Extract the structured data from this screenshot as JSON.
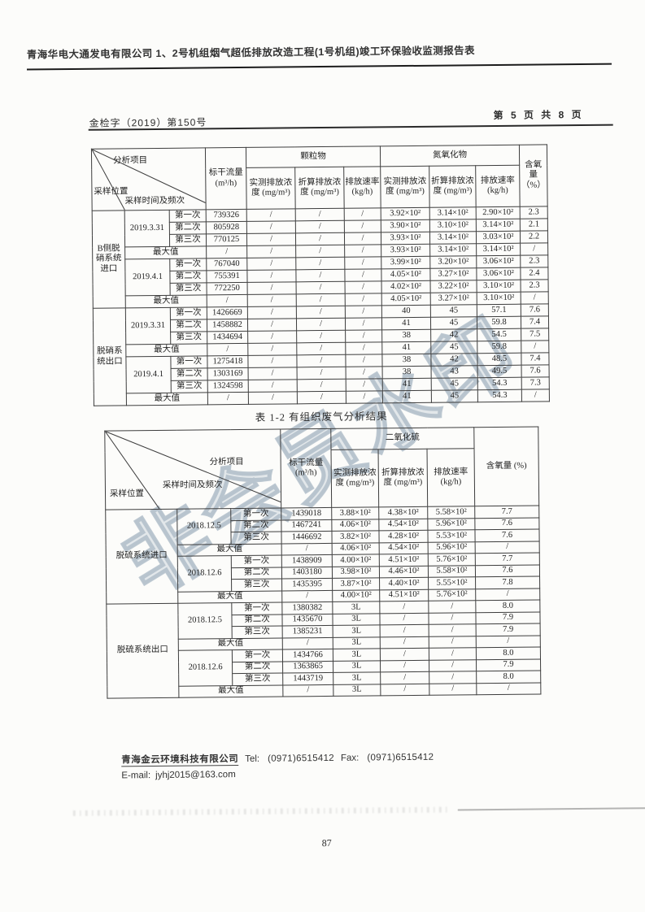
{
  "page": {
    "title": "青海华电大通发电有限公司 1、2号机组烟气超低排放改造工程(1号机组)竣工环保验收监测报告表",
    "doc_number": "金检字（2019）第150号",
    "page_indicator": "第 5 页 共 8 页",
    "page_number": "87",
    "watermark_text": "非会员水印",
    "colors": {
      "ink": "#242424",
      "table_border": "#3d3d3d",
      "watermark": "#bcc7d1"
    }
  },
  "table1": {
    "corner": {
      "item": "分析项目",
      "position": "采样位置",
      "time": "采样时间及频次"
    },
    "columns": {
      "flow": "标干流量 (m³/h)",
      "o2": "含氧量（%）"
    },
    "groups": [
      {
        "label": "颗粒物",
        "sub": [
          "实测排放浓度 (mg/m³)",
          "折算排放浓度 (mg/m³)",
          "排放速率 (kg/h)"
        ]
      },
      {
        "label": "氮氧化物",
        "sub": [
          "实测排放浓度 (mg/m³)",
          "折算排放浓度 (mg/m³)",
          "排放速率 (kg/h)"
        ]
      }
    ],
    "rows": [
      {
        "loc": "B侧脱硝系统进口",
        "locSpan": 8,
        "date": "2019.3.31",
        "dateSpan": 3,
        "seq": "第一次",
        "cells": [
          "739326",
          "/",
          "/",
          "/",
          "3.92×10²",
          "3.14×10²",
          "2.90×10²",
          "2.3"
        ]
      },
      {
        "seq": "第二次",
        "cells": [
          "805928",
          "/",
          "/",
          "/",
          "3.90×10²",
          "3.10×10²",
          "3.14×10²",
          "2.1"
        ]
      },
      {
        "seq": "第三次",
        "cells": [
          "770125",
          "/",
          "/",
          "/",
          "3.93×10²",
          "3.14×10²",
          "3.03×10²",
          "2.2"
        ]
      },
      {
        "max": "最大值",
        "cells": [
          "/",
          "/",
          "/",
          "/",
          "3.93×10²",
          "3.14×10²",
          "3.14×10²",
          "/"
        ]
      },
      {
        "date": "2019.4.1",
        "dateSpan": 3,
        "seq": "第一次",
        "cells": [
          "767040",
          "/",
          "/",
          "/",
          "3.99×10²",
          "3.20×10²",
          "3.06×10²",
          "2.3"
        ]
      },
      {
        "seq": "第二次",
        "cells": [
          "755391",
          "/",
          "/",
          "/",
          "4.05×10²",
          "3.27×10²",
          "3.06×10²",
          "2.4"
        ]
      },
      {
        "seq": "第三次",
        "cells": [
          "772250",
          "/",
          "/",
          "/",
          "4.02×10²",
          "3.22×10²",
          "3.10×10²",
          "2.3"
        ]
      },
      {
        "max": "最大值",
        "cells": [
          "/",
          "/",
          "/",
          "/",
          "4.05×10²",
          "3.27×10²",
          "3.10×10²",
          "/"
        ]
      },
      {
        "loc": "脱硝系统出口",
        "locSpan": 8,
        "date": "2019.3.31",
        "dateSpan": 3,
        "seq": "第一次",
        "cells": [
          "1426669",
          "/",
          "/",
          "/",
          "40",
          "45",
          "57.1",
          "7.6"
        ]
      },
      {
        "seq": "第二次",
        "cells": [
          "1458882",
          "/",
          "/",
          "/",
          "41",
          "45",
          "59.8",
          "7.4"
        ]
      },
      {
        "seq": "第三次",
        "cells": [
          "1434694",
          "/",
          "/",
          "/",
          "38",
          "42",
          "54.5",
          "7.5"
        ]
      },
      {
        "max": "最大值",
        "cells": [
          "/",
          "/",
          "/",
          "/",
          "41",
          "45",
          "59.8",
          "/"
        ]
      },
      {
        "date": "2019.4.1",
        "dateSpan": 3,
        "seq": "第一次",
        "cells": [
          "1275418",
          "/",
          "/",
          "/",
          "38",
          "42",
          "48.5",
          "7.4"
        ]
      },
      {
        "seq": "第二次",
        "cells": [
          "1303169",
          "/",
          "/",
          "/",
          "38",
          "43",
          "49.5",
          "7.6"
        ]
      },
      {
        "seq": "第三次",
        "cells": [
          "1324598",
          "/",
          "/",
          "/",
          "41",
          "45",
          "54.3",
          "7.3"
        ]
      },
      {
        "max": "最大值",
        "cells": [
          "/",
          "/",
          "/",
          "/",
          "41",
          "45",
          "54.3",
          "/"
        ]
      }
    ]
  },
  "caption2": "表 1-2  有组织废气分析结果",
  "table2": {
    "corner": {
      "item": "分析项目",
      "position": "采样位置",
      "time": "采样时间及频次"
    },
    "columns": {
      "flow": "标干流量 (m³/h)",
      "o2": "含氧量 (%)"
    },
    "group": {
      "label": "二氧化硫",
      "sub": [
        "实测排放浓度 (mg/m³)",
        "折算排放浓度 (mg/m³)",
        "排放速率 (kg/h)"
      ]
    },
    "rows": [
      {
        "loc": "脱硫系统进口",
        "locSpan": 8,
        "date": "2018.12.5",
        "dateSpan": 3,
        "seq": "第一次",
        "cells": [
          "1439018",
          "3.88×10²",
          "4.38×10²",
          "5.58×10²",
          "7.7"
        ]
      },
      {
        "seq": "第二次",
        "cells": [
          "1467241",
          "4.06×10²",
          "4.54×10²",
          "5.96×10²",
          "7.6"
        ]
      },
      {
        "seq": "第三次",
        "cells": [
          "1446692",
          "3.82×10²",
          "4.28×10²",
          "5.53×10²",
          "7.6"
        ]
      },
      {
        "max": "最大值",
        "cells": [
          "/",
          "4.06×10²",
          "4.54×10²",
          "5.96×10²",
          "/"
        ]
      },
      {
        "date": "2018.12.6",
        "dateSpan": 3,
        "seq": "第一次",
        "cells": [
          "1438909",
          "4.00×10²",
          "4.51×10²",
          "5.76×10²",
          "7.7"
        ]
      },
      {
        "seq": "第二次",
        "cells": [
          "1403180",
          "3.98×10²",
          "4.46×10²",
          "5.58×10²",
          "7.6"
        ]
      },
      {
        "seq": "第三次",
        "cells": [
          "1435395",
          "3.87×10²",
          "4.40×10²",
          "5.55×10²",
          "7.8"
        ]
      },
      {
        "max": "最大值",
        "cells": [
          "/",
          "4.00×10²",
          "4.51×10²",
          "5.76×10²",
          "/"
        ]
      },
      {
        "loc": "脱硫系统出口",
        "locSpan": 8,
        "date": "2018.12.5",
        "dateSpan": 3,
        "seq": "第一次",
        "cells": [
          "1380382",
          "3L",
          "/",
          "/",
          "8.0"
        ]
      },
      {
        "seq": "第二次",
        "cells": [
          "1435670",
          "3L",
          "/",
          "/",
          "7.9"
        ]
      },
      {
        "seq": "第三次",
        "cells": [
          "1385231",
          "3L",
          "/",
          "/",
          "7.9"
        ]
      },
      {
        "max": "最大值",
        "cells": [
          "/",
          "3L",
          "/",
          "/",
          "/"
        ]
      },
      {
        "date": "2018.12.6",
        "dateSpan": 3,
        "seq": "第一次",
        "cells": [
          "1434766",
          "3L",
          "/",
          "/",
          "8.0"
        ]
      },
      {
        "seq": "第二次",
        "cells": [
          "1363865",
          "3L",
          "/",
          "/",
          "7.9"
        ]
      },
      {
        "seq": "第三次",
        "cells": [
          "1443719",
          "3L",
          "/",
          "/",
          "8.0"
        ]
      },
      {
        "max": "最大值",
        "cells": [
          "/",
          "3L",
          "/",
          "/",
          "/"
        ]
      }
    ]
  },
  "footer": {
    "company": "青海金云环境科技有限公司",
    "tel_label": "Tel:",
    "tel": "(0971)6515412",
    "fax_label": "Fax:",
    "fax": "(0971)6515412",
    "email_label": "E-mail:",
    "email": "jyhj2015@163.com"
  }
}
